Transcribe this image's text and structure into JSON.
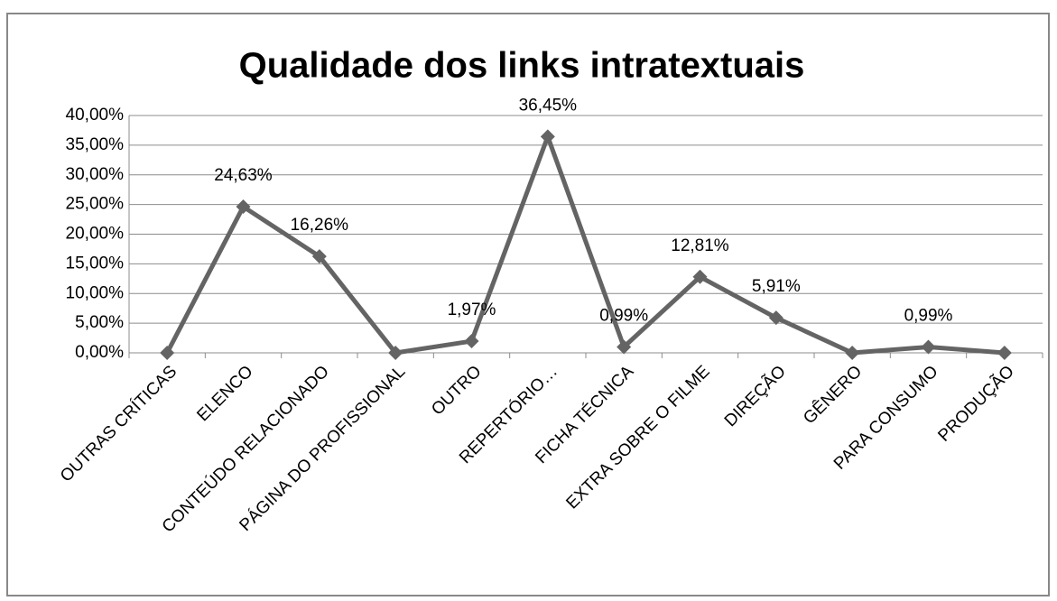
{
  "chart_data": {
    "type": "line",
    "title": "Qualidade dos links intratextuais",
    "categories": [
      "OUTRAS CRÍTICAS",
      "ELENCO",
      "CONTEÚDO RELACIONADO",
      "PÁGINA DO PROFISSIONAL",
      "OUTRO",
      "REPERTÓRIO…",
      "FICHA TÉCNICA",
      "EXTRA SOBRE O FILME",
      "DIREÇÃO",
      "GÊNERO",
      "PARA CONSUMO",
      "PRODUÇÃO"
    ],
    "series": [
      {
        "color": "#646464",
        "values": [
          0,
          24.63,
          16.26,
          0,
          1.97,
          36.45,
          0.99,
          12.81,
          5.91,
          0,
          0.99,
          0
        ],
        "value_labels": [
          null,
          "24,63%",
          "16,26%",
          null,
          "1,97%",
          "36,45%",
          "0,99%",
          "12,81%",
          "5,91%",
          null,
          "0,99%",
          null
        ]
      }
    ],
    "ylim": [
      0,
      40
    ],
    "yticks": [
      {
        "value": 0,
        "label": "0,00%"
      },
      {
        "value": 5,
        "label": "5,00%"
      },
      {
        "value": 10,
        "label": "10,00%"
      },
      {
        "value": 15,
        "label": "15,00%"
      },
      {
        "value": 20,
        "label": "20,00%"
      },
      {
        "value": 25,
        "label": "25,00%"
      },
      {
        "value": 30,
        "label": "30,00%"
      },
      {
        "value": 35,
        "label": "35,00%"
      },
      {
        "value": 40,
        "label": "40,00%"
      }
    ],
    "grid": true
  }
}
